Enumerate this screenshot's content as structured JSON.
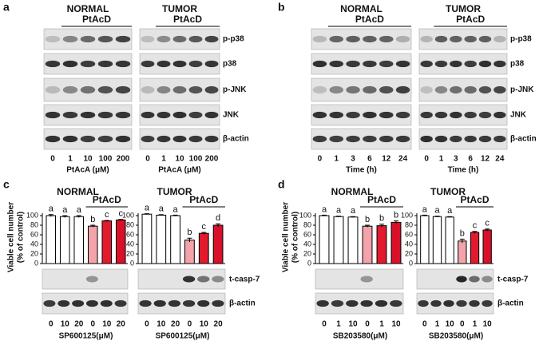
{
  "figure": {
    "panel_labels": [
      "a",
      "b",
      "c",
      "d"
    ],
    "blots": [
      {
        "rows": [
          "p-p38",
          "p38",
          "p-JNK",
          "JNK",
          "β-actin"
        ],
        "groups": [
          {
            "title": "NORMAL",
            "treatment": "PtAcD",
            "lanes": [
              "0",
              "1",
              "10",
              "100",
              "200"
            ],
            "xlabel": "PtAcA (μM)"
          },
          {
            "title": "TUMOR",
            "treatment": "PtAcD",
            "lanes": [
              "0",
              "1",
              "10",
              "100",
              "200"
            ],
            "xlabel": "PtAcA (μM)"
          }
        ]
      },
      {
        "rows": [
          "p-p38",
          "p38",
          "p-JNK",
          "JNK",
          "β-actin"
        ],
        "groups": [
          {
            "title": "NORMAL",
            "treatment": "PtAcD",
            "lanes": [
              "0",
              "1",
              "3",
              "6",
              "12",
              "24"
            ],
            "xlabel": "Time (h)"
          },
          {
            "title": "TUMOR",
            "treatment": "PtAcD",
            "lanes": [
              "0",
              "1",
              "3",
              "6",
              "12",
              "24"
            ],
            "xlabel": "Time (h)"
          }
        ]
      }
    ]
  },
  "chart_data": [
    {
      "type": "bar",
      "title": "NORMAL",
      "treatment": "PtAcD",
      "ylabel": [
        "Viable cell number",
        "(% of control)"
      ],
      "categories": [
        "0",
        "10",
        "20",
        "0",
        "10",
        "20"
      ],
      "xlabel": "SP600125(μM)",
      "values": [
        100,
        98,
        98,
        78,
        89,
        91
      ],
      "errors": [
        2,
        2,
        2,
        2,
        1,
        1
      ],
      "annotations": [
        "a",
        "a",
        "a",
        "b",
        "c",
        "c"
      ],
      "colors": [
        "#ffffff",
        "#ffffff",
        "#ffffff",
        "#f4a3ab",
        "#e3192d",
        "#d8102a"
      ],
      "ylim": [
        0,
        105
      ],
      "yticks": [
        0,
        20,
        40,
        60,
        80,
        100
      ]
    },
    {
      "type": "bar",
      "title": "TUMOR",
      "treatment": "PtAcD",
      "categories": [
        "0",
        "10",
        "20",
        "0",
        "10",
        "20"
      ],
      "xlabel": "SP600125(μM)",
      "values": [
        103,
        101,
        100,
        49,
        63,
        80
      ],
      "errors": [
        1,
        1,
        1,
        4,
        2,
        3
      ],
      "annotations": [
        "a",
        "a",
        "a",
        "b",
        "c",
        "d"
      ],
      "colors": [
        "#ffffff",
        "#ffffff",
        "#ffffff",
        "#f4a3ab",
        "#e3192d",
        "#d8102a"
      ],
      "ylim": [
        0,
        105
      ],
      "yticks": [
        0,
        20,
        40,
        60,
        80,
        100
      ],
      "blots": [
        "t-casp-7",
        "β-actin"
      ]
    },
    {
      "type": "bar",
      "title": "NORMAL",
      "treatment": "PtAcD",
      "ylabel": [
        "Viable cell number",
        "(% of control)"
      ],
      "categories": [
        "0",
        "1",
        "10",
        "0",
        "1",
        "10"
      ],
      "xlabel": "SB203580(μM)",
      "values": [
        100,
        98,
        97,
        78,
        79,
        86
      ],
      "errors": [
        1,
        1,
        1,
        2,
        3,
        3
      ],
      "annotations": [
        "a",
        "a",
        "a",
        "b",
        "b",
        "b"
      ],
      "colors": [
        "#ffffff",
        "#ffffff",
        "#ffffff",
        "#f4a3ab",
        "#e3192d",
        "#d8102a"
      ],
      "ylim": [
        0,
        105
      ],
      "yticks": [
        0,
        20,
        40,
        60,
        80,
        100
      ]
    },
    {
      "type": "bar",
      "title": "TUMOR",
      "treatment": "PtAcD",
      "categories": [
        "0",
        "1",
        "10",
        "0",
        "1",
        "10"
      ],
      "xlabel": "SB203580(μM)",
      "values": [
        100,
        98,
        97,
        47,
        65,
        70
      ],
      "errors": [
        1,
        1,
        1,
        4,
        2,
        2
      ],
      "annotations": [
        "a",
        "a",
        "a",
        "b",
        "c",
        "c"
      ],
      "colors": [
        "#ffffff",
        "#ffffff",
        "#ffffff",
        "#f4a3ab",
        "#e3192d",
        "#d8102a"
      ],
      "ylim": [
        0,
        105
      ],
      "yticks": [
        0,
        20,
        40,
        60,
        80,
        100
      ],
      "blots": [
        "t-casp-7",
        "β-actin"
      ]
    }
  ]
}
